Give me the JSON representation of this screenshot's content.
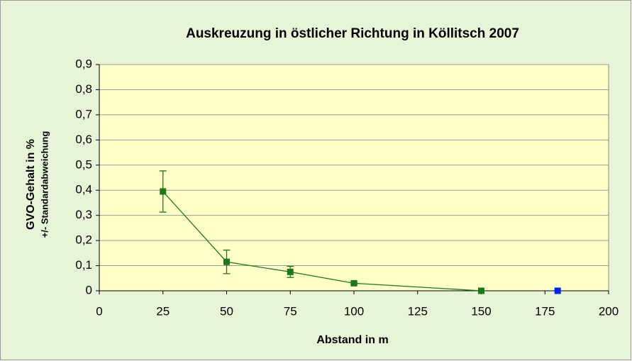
{
  "chart_data": {
    "type": "line",
    "title": "Auskreuzung in östlicher Richtung in Köllitsch 2007",
    "xlabel": "Abstand in m",
    "ylabel": "GVO-Gehalt in %",
    "ylabel2": "+/- Standardabweichung",
    "xlim": [
      0,
      200
    ],
    "xticks": [
      0,
      25,
      50,
      75,
      100,
      125,
      150,
      175,
      200
    ],
    "ylim": [
      0,
      0.9
    ],
    "yticks": [
      0,
      {
        "value": 0.1,
        "label": "0,1"
      },
      {
        "value": 0.2,
        "label": "0,2"
      },
      {
        "value": 0.3,
        "label": "0,3"
      },
      {
        "value": 0.4,
        "label": "0,4"
      },
      {
        "value": 0.5,
        "label": "0,5"
      },
      {
        "value": 0.6,
        "label": "0,6"
      },
      {
        "value": 0.7,
        "label": "0,7"
      },
      {
        "value": 0.8,
        "label": "0,8"
      },
      {
        "value": 0.9,
        "label": "0,9"
      }
    ],
    "grid": true,
    "series": [
      {
        "color": "#1a7a1a",
        "x": [
          25,
          50,
          75,
          100,
          150
        ],
        "values": [
          0.395,
          0.115,
          0.075,
          0.03,
          0
        ],
        "errors": [
          0.082,
          0.047,
          0.022,
          0.005,
          0
        ]
      },
      {
        "color": "#0022ee",
        "x": [
          180
        ],
        "values": [
          0
        ]
      }
    ]
  }
}
